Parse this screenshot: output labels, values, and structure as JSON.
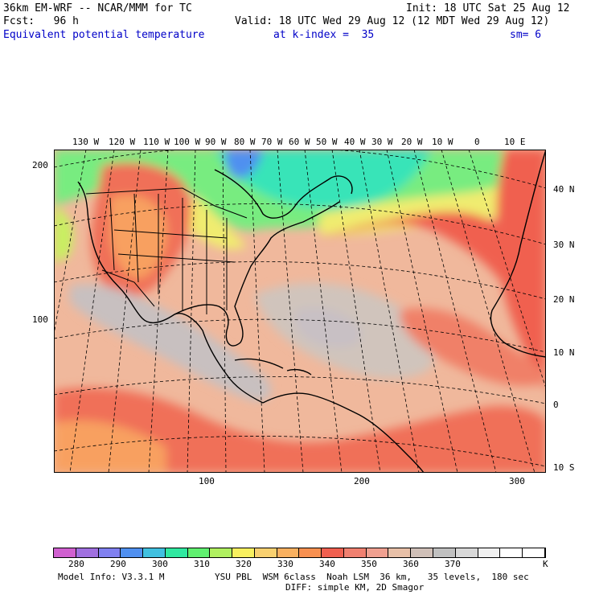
{
  "header": {
    "model": "36km EM-WRF -- NCAR/MMM for TC",
    "init": "Init: 18 UTC Sat 25 Aug 12",
    "fcst": "Fcst:   96 h",
    "valid": "Valid: 18 UTC Wed 29 Aug 12 (12 MDT Wed 29 Aug 12)",
    "field": "Equivalent potential temperature",
    "level": "at k-index =  35",
    "smooth": "sm= 6"
  },
  "map": {
    "lon_labels": [
      "130 W",
      "120 W",
      "110 W",
      "100 W",
      "90 W",
      "80 W",
      "70 W",
      "60 W",
      "50 W",
      "40 W",
      "30 W",
      "20 W",
      "10 W",
      "0",
      "10 E"
    ],
    "lat_labels": [
      "40 N",
      "30 N",
      "20 N",
      "10 N",
      "0",
      "10 S"
    ],
    "grid_y_labels": [
      "200",
      "100"
    ],
    "grid_x_labels": [
      "100",
      "200",
      "300"
    ]
  },
  "legend": {
    "colors": [
      "#d060d0",
      "#a070e0",
      "#8080f0",
      "#5090f0",
      "#40c0e0",
      "#30e8a0",
      "#60f070",
      "#b0f060",
      "#f8f060",
      "#f8d070",
      "#f8b060",
      "#f89050",
      "#f06050",
      "#f08070",
      "#f0a090",
      "#e8c0a8",
      "#d0c0b8",
      "#c0c0c0",
      "#d8d8d8",
      "#f0f0f0",
      "#ffffff",
      "#ffffff"
    ],
    "labels": [
      "280",
      "290",
      "300",
      "310",
      "320",
      "330",
      "340",
      "350",
      "360",
      "370"
    ],
    "unit": "K"
  },
  "footer": {
    "info_left": "Model Info: V3.3.1 M",
    "info_right": "YSU PBL  WSM 6class  Noah LSM  36 km,   35 levels,  180 sec",
    "info_line2": "DIFF: simple KM, 2D Smagor"
  }
}
